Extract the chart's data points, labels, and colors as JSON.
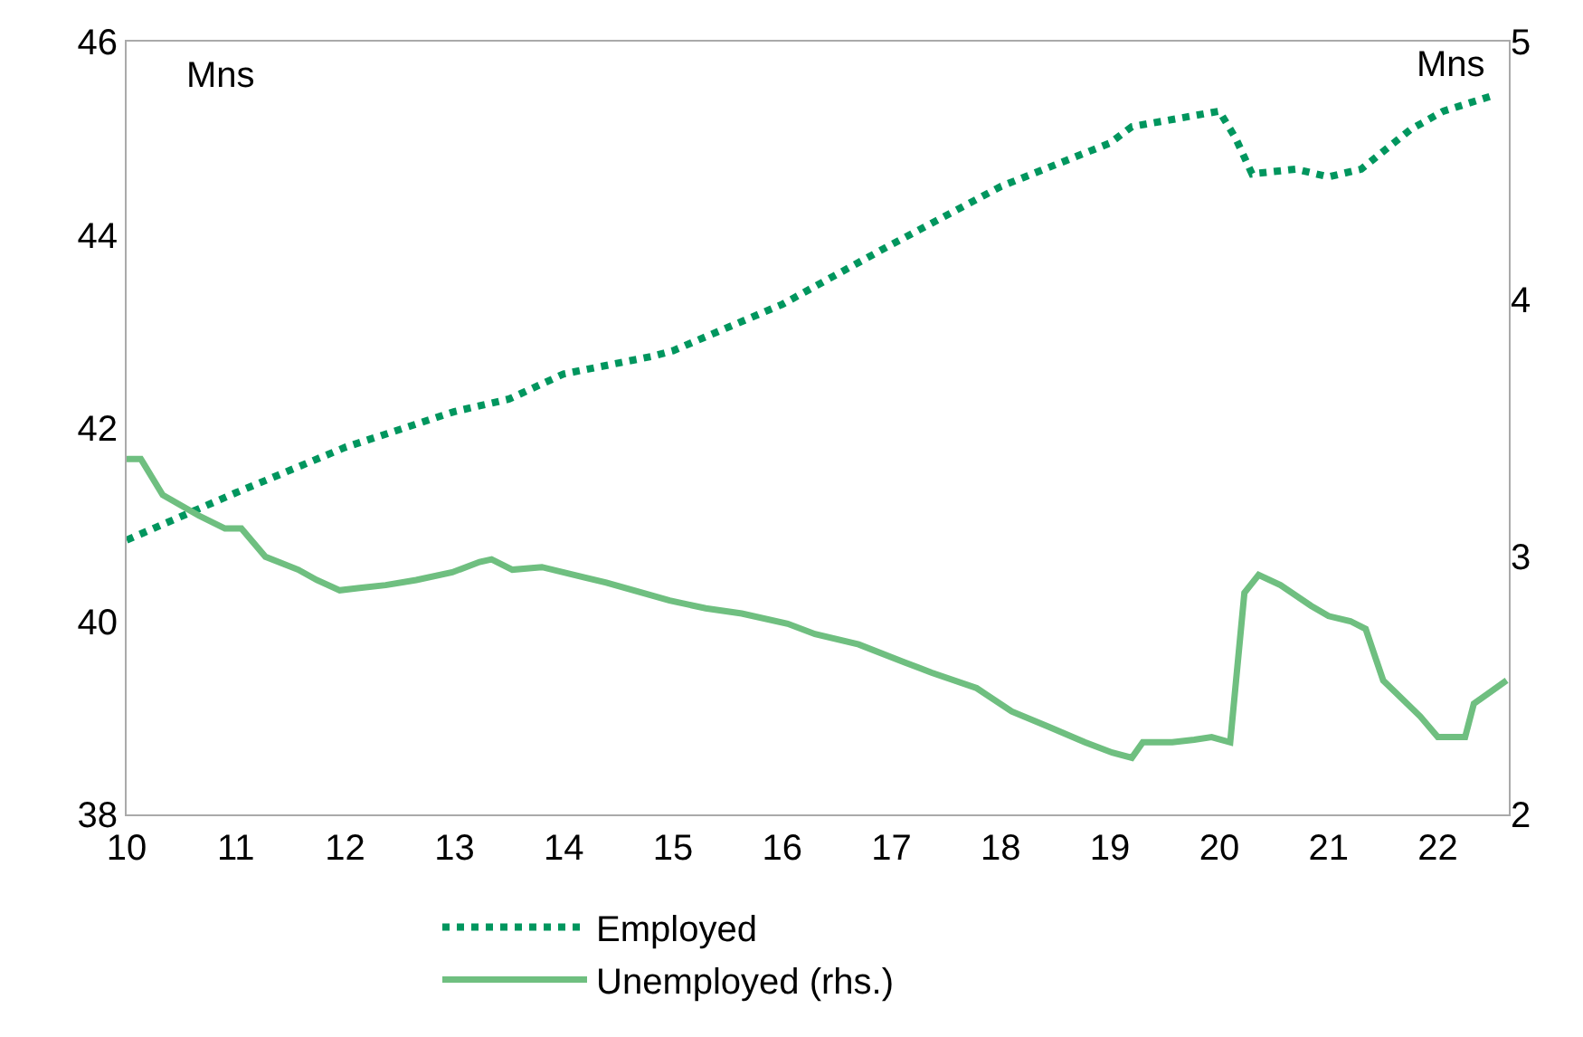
{
  "chart_data": {
    "type": "line",
    "annotations": [
      "Mns",
      "Mns"
    ],
    "xlim": [
      10,
      22.65
    ],
    "xticks": [
      10,
      11,
      12,
      13,
      14,
      15,
      16,
      17,
      18,
      19,
      20,
      21,
      22
    ],
    "ylim": [
      38,
      46
    ],
    "yticks": [
      38,
      40,
      42,
      44,
      46
    ],
    "y2lim": [
      2,
      5
    ],
    "y2ticks": [
      2,
      3,
      4,
      5
    ],
    "legend": "bottom",
    "series": [
      {
        "name": "Employed",
        "color": "#00965e",
        "line_style": "dotted",
        "x": [
          10,
          11,
          12,
          13,
          13.5,
          14,
          14.8,
          15,
          16,
          17,
          18,
          19,
          19.2,
          20,
          20.15,
          20.3,
          20.7,
          21,
          21.3,
          21.75,
          22.05,
          22.5
        ],
        "values": [
          40.84,
          41.33,
          41.8,
          42.17,
          42.3,
          42.56,
          42.74,
          42.8,
          43.28,
          43.9,
          44.5,
          44.95,
          45.12,
          45.28,
          45.0,
          44.63,
          44.68,
          44.6,
          44.68,
          45.09,
          45.28,
          45.44
        ]
      },
      {
        "name": "Unemployed (rhs.)",
        "color": "#6fbf80",
        "line_style": "solid",
        "axis": "y2",
        "x": [
          10,
          10.13,
          10.33,
          10.66,
          10.9,
          11.05,
          11.27,
          11.57,
          11.74,
          11.95,
          12.15,
          12.37,
          12.65,
          12.98,
          13.23,
          13.34,
          13.53,
          13.8,
          14.19,
          14.39,
          14.64,
          14.97,
          15.3,
          15.63,
          16.05,
          16.3,
          16.7,
          17.12,
          17.37,
          17.78,
          18.1,
          18.44,
          18.77,
          19.02,
          19.2,
          19.3,
          19.57,
          19.77,
          19.93,
          20.1,
          20.23,
          20.36,
          20.56,
          20.84,
          21.0,
          21.2,
          21.34,
          21.5,
          21.84,
          22.0,
          22.25,
          22.33,
          22.63
        ],
        "values": [
          3.38,
          3.38,
          3.24,
          3.16,
          3.11,
          3.11,
          3.0,
          2.95,
          2.91,
          2.87,
          2.88,
          2.89,
          2.91,
          2.94,
          2.98,
          2.99,
          2.95,
          2.96,
          2.92,
          2.9,
          2.87,
          2.83,
          2.8,
          2.78,
          2.74,
          2.7,
          2.66,
          2.59,
          2.55,
          2.49,
          2.4,
          2.34,
          2.28,
          2.24,
          2.22,
          2.28,
          2.28,
          2.29,
          2.3,
          2.28,
          2.86,
          2.93,
          2.89,
          2.81,
          2.77,
          2.75,
          2.72,
          2.52,
          2.38,
          2.3,
          2.3,
          2.43,
          2.52
        ]
      }
    ]
  }
}
